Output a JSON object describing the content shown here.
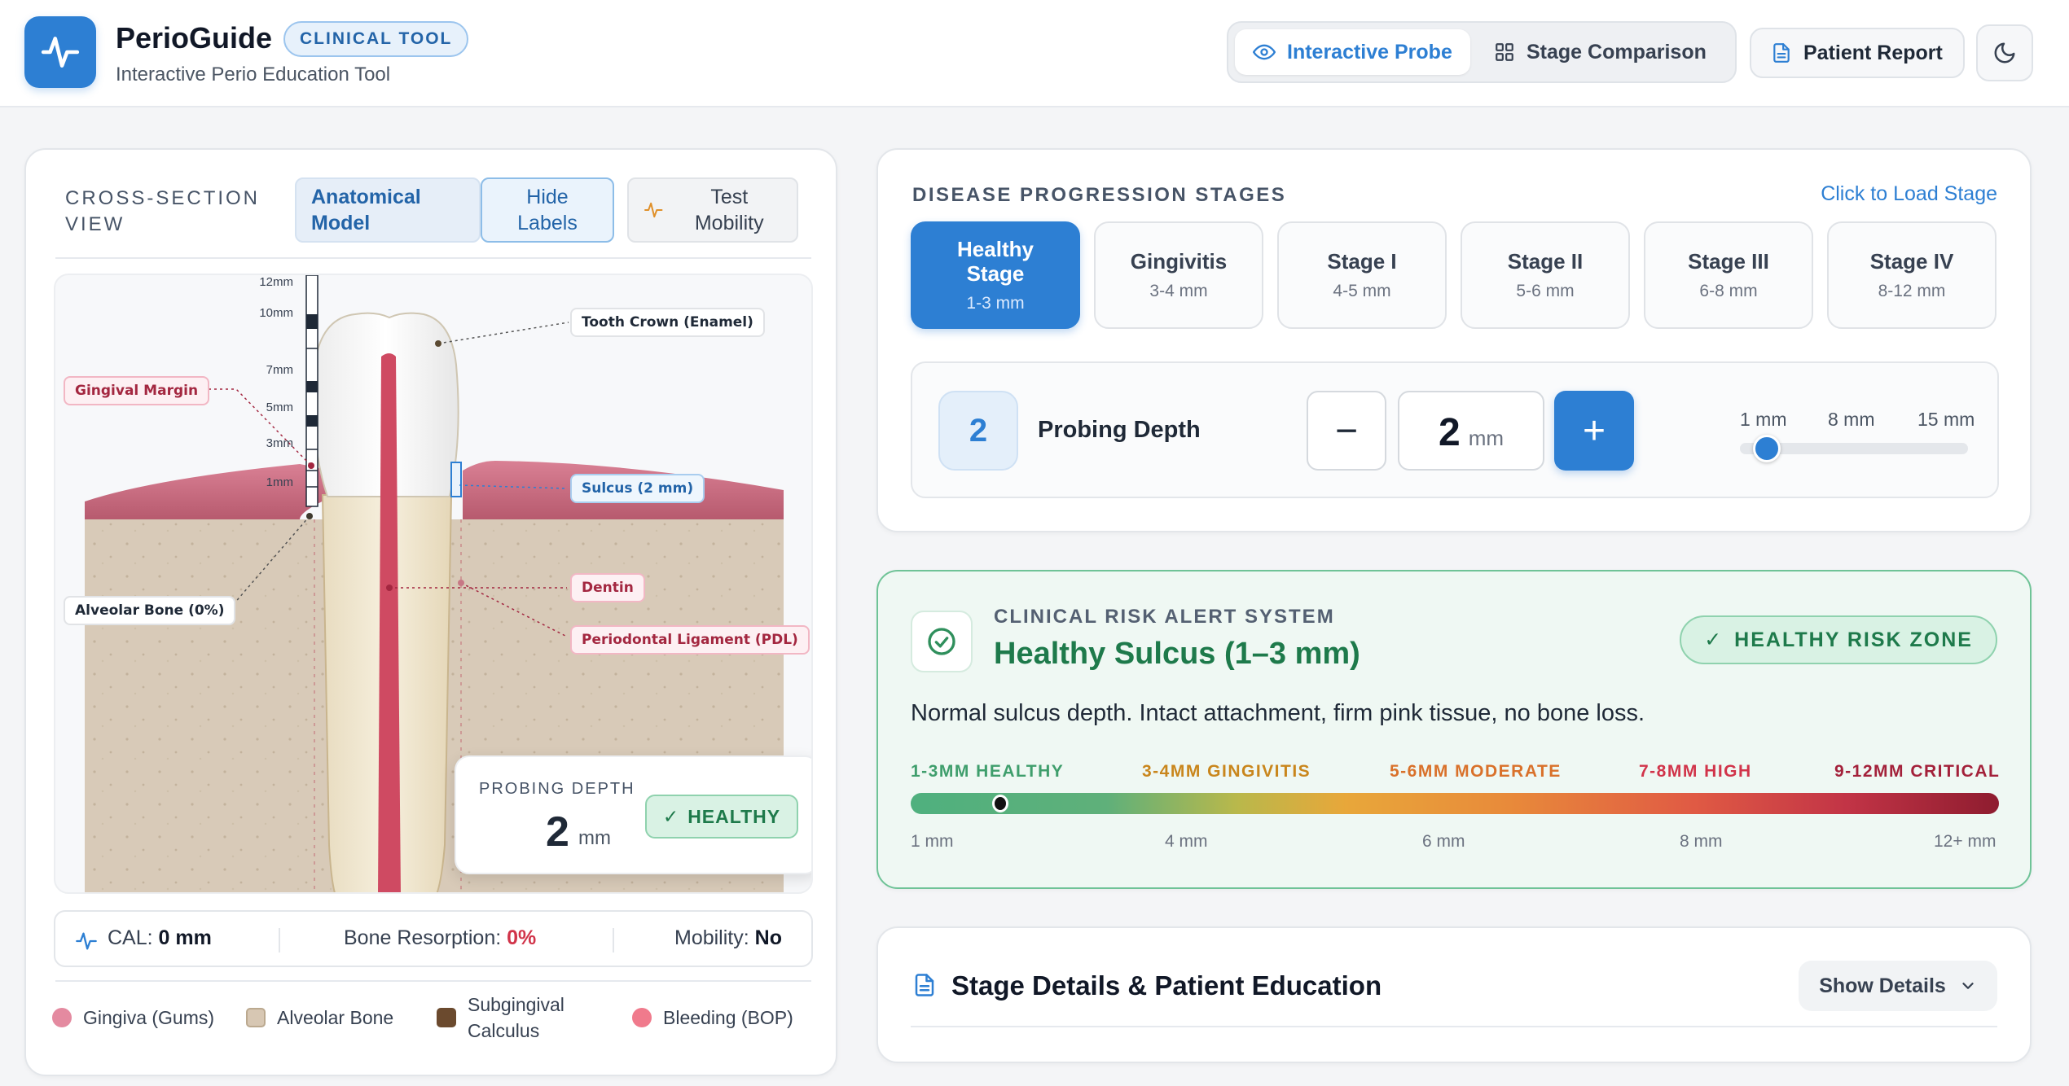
{
  "app": {
    "title": "PerioGuide",
    "badge": "CLINICAL TOOL",
    "subtitle": "Interactive Perio Education Tool"
  },
  "nav": {
    "interactive_probe": "Interactive Probe",
    "stage_comparison": "Stage Comparison",
    "patient_report": "Patient Report"
  },
  "cross_section": {
    "title": "CROSS-SECTION VIEW",
    "btn_anatomical": "Anatomical Model",
    "btn_hide_labels": "Hide Labels",
    "btn_test_mobility": "Test Mobility"
  },
  "illustration": {
    "ruler_ticks": [
      "12mm",
      "10mm",
      "7mm",
      "5mm",
      "3mm",
      "1mm"
    ],
    "labels": {
      "crown": "Tooth Crown (Enamel)",
      "gingival_margin": "Gingival Margin",
      "sulcus": "Sulcus (2 mm)",
      "dentin": "Dentin",
      "pdl": "Periodontal Ligament (PDL)",
      "alveolar_bone": "Alveolar Bone (0%)"
    },
    "overlay": {
      "kicker": "PROBING DEPTH",
      "value": "2",
      "unit": "mm",
      "status": "HEALTHY"
    }
  },
  "stats": {
    "cal_label": "CAL:",
    "cal_value": "0 mm",
    "bone_label": "Bone Resorption:",
    "bone_value": "0%",
    "mobility_label": "Mobility:",
    "mobility_value": "No"
  },
  "legend": [
    {
      "label": "Gingiva (Gums)",
      "color": "#e48aa0"
    },
    {
      "label": "Alveolar Bone",
      "color": "#d7c7b3"
    },
    {
      "label": "Subgingival Calculus",
      "color": "#6b4a2e"
    },
    {
      "label": "Bleeding (BOP)",
      "color": "#f07a8c"
    }
  ],
  "stages": {
    "title": "DISEASE PROGRESSION STAGES",
    "action": "Click to Load Stage",
    "items": [
      {
        "name": "Healthy Stage",
        "range": "1-3 mm",
        "active": true
      },
      {
        "name": "Gingivitis",
        "range": "3-4 mm"
      },
      {
        "name": "Stage I",
        "range": "4-5 mm"
      },
      {
        "name": "Stage II",
        "range": "5-6 mm"
      },
      {
        "name": "Stage III",
        "range": "6-8 mm"
      },
      {
        "name": "Stage IV",
        "range": "8-12 mm"
      }
    ]
  },
  "probe": {
    "bubble": "2",
    "label": "Probing Depth",
    "minus": "−",
    "plus": "+",
    "value": "2",
    "unit": "mm",
    "slider_min": "1 mm",
    "slider_mid": "8 mm",
    "slider_max": "15 mm",
    "slider_value_mm": 2
  },
  "alert": {
    "kicker": "CLINICAL RISK ALERT SYSTEM",
    "title": "Healthy Sulcus (1–3 mm)",
    "zone": "HEALTHY RISK ZONE",
    "description": "Normal sulcus depth. Intact attachment, firm pink tissue, no bone loss.",
    "zones": [
      {
        "label": "1-3MM HEALTHY",
        "color": "#3f9e6c"
      },
      {
        "label": "3-4MM GINGIVITIS",
        "color": "#c9861c"
      },
      {
        "label": "5-6MM MODERATE",
        "color": "#d9712a"
      },
      {
        "label": "7-8MM HIGH",
        "color": "#d1344a"
      },
      {
        "label": "9-12MM CRITICAL",
        "color": "#a3213a"
      }
    ],
    "ticks": [
      "1 mm",
      "4 mm",
      "6 mm",
      "8 mm",
      "12+ mm"
    ]
  },
  "details": {
    "title": "Stage Details & Patient Education",
    "toggle": "Show Details"
  }
}
